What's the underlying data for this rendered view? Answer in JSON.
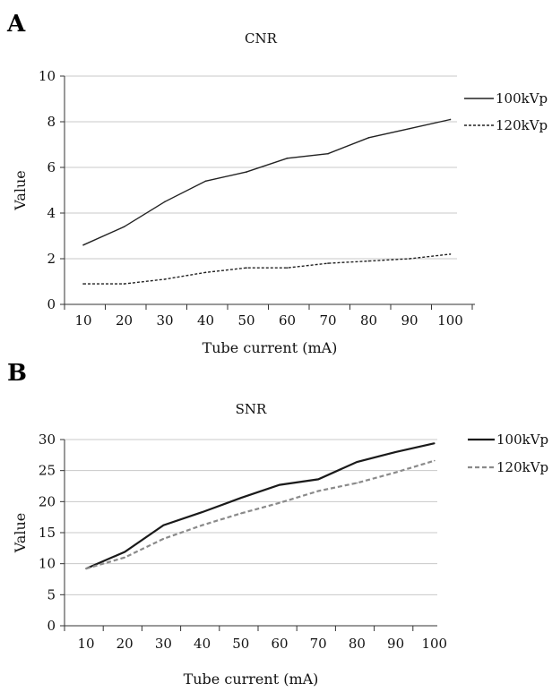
{
  "chart_data": [
    {
      "panel": "A",
      "type": "line",
      "title": "CNR",
      "xlabel": "Tube current (mA)",
      "ylabel": "Value",
      "categories": [
        "10",
        "20",
        "30",
        "40",
        "50",
        "60",
        "70",
        "80",
        "90",
        "100"
      ],
      "ylim": [
        0,
        10
      ],
      "yticks": [
        "0",
        "2",
        "4",
        "6",
        "8",
        "10"
      ],
      "grid": true,
      "legend_position": "right",
      "series": [
        {
          "name": "100kVp",
          "values": [
            2.6,
            3.4,
            4.5,
            5.4,
            5.8,
            6.4,
            6.6,
            7.3,
            7.7,
            8.1
          ],
          "color": "#222222",
          "dash": "solid"
        },
        {
          "name": "120kVp",
          "values": [
            0.9,
            0.9,
            1.1,
            1.4,
            1.6,
            1.6,
            1.8,
            1.9,
            2.0,
            2.2
          ],
          "color": "#222222",
          "dash": "dashed"
        }
      ]
    },
    {
      "panel": "B",
      "type": "line",
      "title": "SNR",
      "xlabel": "Tube current (mA)",
      "ylabel": "Value",
      "categories": [
        "10",
        "20",
        "30",
        "40",
        "50",
        "60",
        "70",
        "80",
        "90",
        "100"
      ],
      "ylim": [
        0,
        30
      ],
      "yticks": [
        "0",
        "5",
        "10",
        "15",
        "20",
        "25",
        "30"
      ],
      "grid": true,
      "legend_position": "right",
      "series": [
        {
          "name": "100kVp",
          "values": [
            9.2,
            11.9,
            16.2,
            18.3,
            20.6,
            22.7,
            23.6,
            26.4,
            28.0,
            29.4
          ],
          "color": "#1a1a1a",
          "dash": "solid"
        },
        {
          "name": "120kVp",
          "values": [
            9.2,
            11.0,
            14.0,
            16.2,
            18.1,
            19.8,
            21.7,
            23.0,
            24.7,
            26.6
          ],
          "color": "#8a8a8a",
          "dash": "dashed"
        }
      ]
    }
  ]
}
